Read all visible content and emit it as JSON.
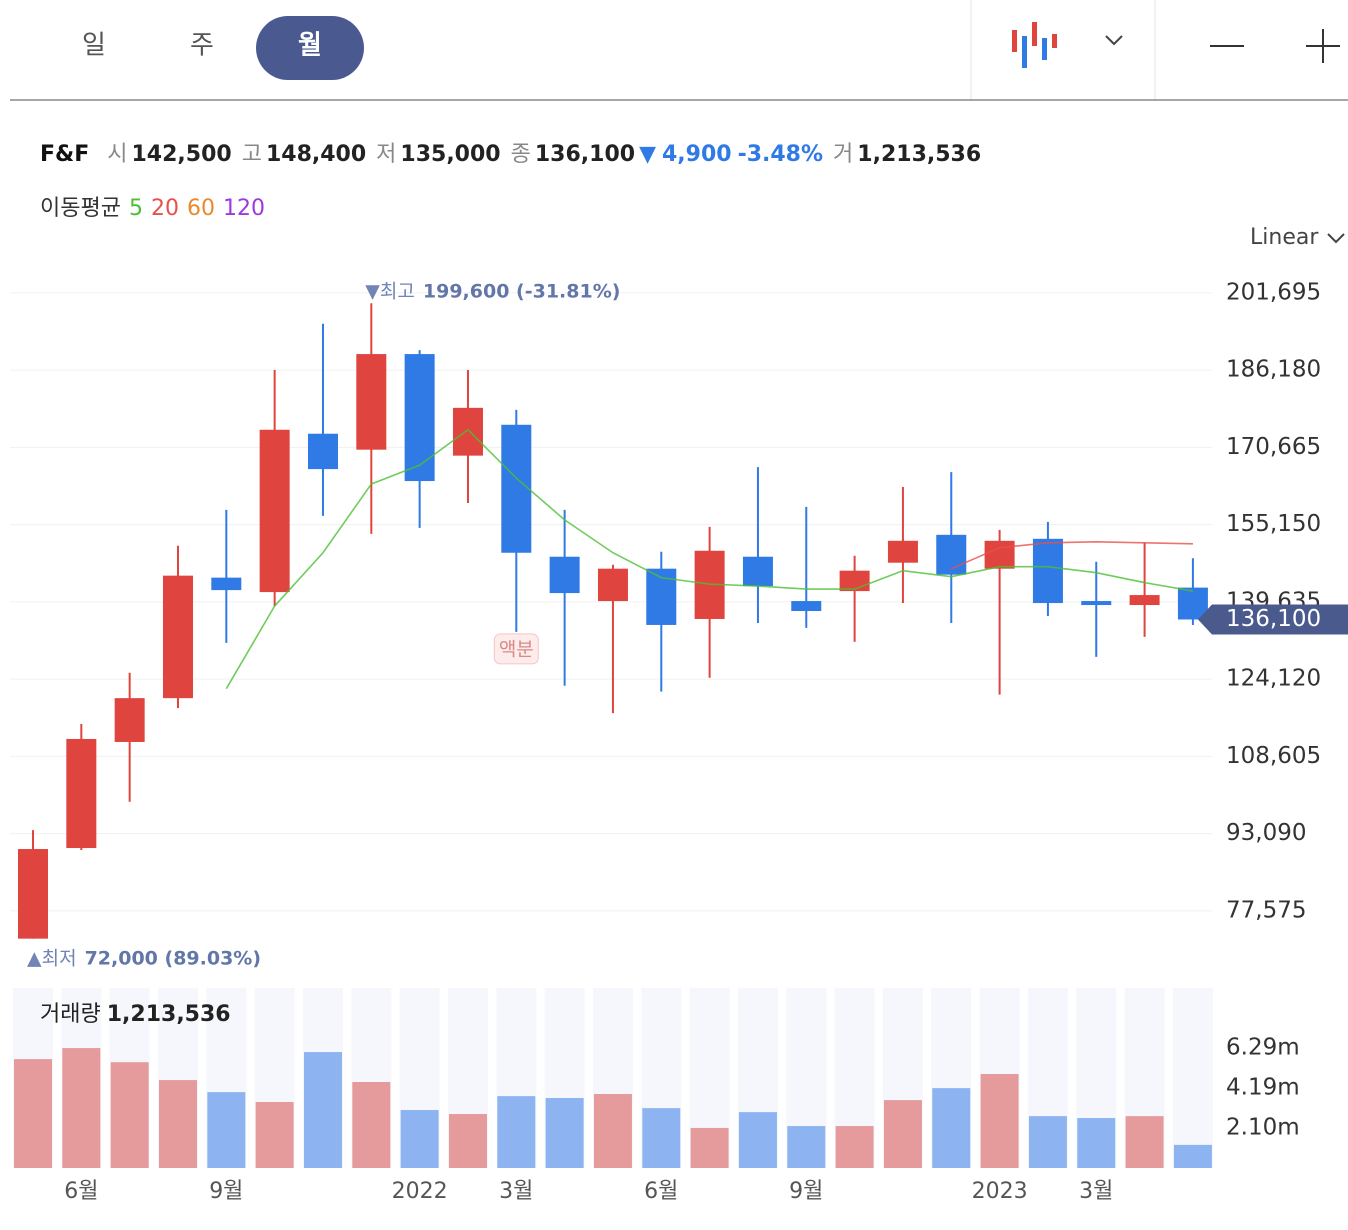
{
  "tabs": {
    "items": [
      "일",
      "주",
      "월"
    ],
    "selected": 2
  },
  "stock": {
    "name": "F&F",
    "open_label": "시",
    "open": "142,500",
    "high_label": "고",
    "high": "148,400",
    "low_label": "저",
    "low": "135,000",
    "close_label": "종",
    "close": "136,100",
    "change_arrow": "▼",
    "change": "4,900",
    "change_pct": "-3.48%",
    "volume_label": "거",
    "volume": "1,213,536"
  },
  "scale_mode": "Linear",
  "chart_data": [
    {
      "type": "candlestick",
      "categories": [
        null,
        "6월",
        null,
        null,
        "9월",
        null,
        null,
        null,
        "2022",
        null,
        "3월",
        null,
        null,
        "6월",
        null,
        null,
        "9월",
        null,
        null,
        null,
        "2023",
        null,
        "3월",
        null,
        null
      ],
      "events": [
        null,
        null,
        null,
        null,
        null,
        null,
        null,
        null,
        null,
        null,
        "액분",
        null,
        null,
        null,
        null,
        null,
        null,
        null,
        null,
        null,
        null,
        null,
        null,
        null,
        null
      ],
      "series": [
        {
          "name": "F&F",
          "open": [
            72000,
            90200,
            111500,
            120300,
            144500,
            141600,
            173400,
            170200,
            189400,
            169000,
            175200,
            148700,
            139800,
            146300,
            136200,
            148700,
            139800,
            141800,
            147500,
            153100,
            146300,
            152300,
            139800,
            139000,
            142500
          ],
          "high": [
            93800,
            115100,
            125400,
            150900,
            158100,
            186200,
            195500,
            199600,
            190200,
            186200,
            178200,
            158100,
            147100,
            149700,
            154700,
            166700,
            158700,
            148900,
            162700,
            165700,
            154100,
            155700,
            147700,
            151500,
            148400
          ],
          "low": [
            72000,
            89800,
            99500,
            118300,
            131400,
            138800,
            156900,
            153300,
            154500,
            159500,
            133600,
            122800,
            117300,
            121600,
            124400,
            135400,
            134400,
            131600,
            139400,
            135400,
            121000,
            136800,
            128600,
            132600,
            135000
          ],
          "close": [
            90000,
            112100,
            120300,
            144900,
            142000,
            174200,
            166300,
            189400,
            163900,
            178600,
            149500,
            141400,
            146300,
            135000,
            149900,
            142800,
            137800,
            145900,
            151900,
            145100,
            151900,
            139400,
            139000,
            141000,
            136100
          ]
        }
      ],
      "up_color": "#e0443e",
      "down_color": "#2f7ae5",
      "ma_title": "이동평균",
      "ma": [
        {
          "name": "5",
          "color": "#4cbf35",
          "values": [
            null,
            null,
            null,
            null,
            122200,
            138800,
            149500,
            163300,
            167100,
            174200,
            164500,
            156100,
            149500,
            144500,
            143200,
            142800,
            142200,
            142200,
            145900,
            144700,
            146700,
            146700,
            145500,
            143500,
            141800
          ]
        },
        {
          "name": "20",
          "color": "#e8504a",
          "values": [
            null,
            null,
            null,
            null,
            null,
            null,
            null,
            null,
            null,
            null,
            null,
            null,
            null,
            null,
            null,
            null,
            null,
            null,
            null,
            146300,
            150500,
            151500,
            151700,
            151500,
            151300
          ]
        },
        {
          "name": "60",
          "color": "#e88a2e",
          "values": [
            null,
            null,
            null,
            null,
            null,
            null,
            null,
            null,
            null,
            null,
            null,
            null,
            null,
            null,
            null,
            null,
            null,
            null,
            null,
            null,
            null,
            null,
            null,
            null,
            null
          ]
        },
        {
          "name": "120",
          "color": "#9a3ae0",
          "values": [
            null,
            null,
            null,
            null,
            null,
            null,
            null,
            null,
            null,
            null,
            null,
            null,
            null,
            null,
            null,
            null,
            null,
            null,
            null,
            null,
            null,
            null,
            null,
            null,
            null
          ]
        }
      ],
      "ylim": [
        64700,
        210300
      ],
      "yticks": [
        {
          "value": 77575,
          "label": "77,575"
        },
        {
          "value": 93090,
          "label": "93,090"
        },
        {
          "value": 108605,
          "label": "108,605"
        },
        {
          "value": 124120,
          "label": "124,120"
        },
        {
          "value": 139635,
          "label": "139,635"
        },
        {
          "value": 155150,
          "label": "155,150"
        },
        {
          "value": 170665,
          "label": "170,665"
        },
        {
          "value": 186180,
          "label": "186,180"
        },
        {
          "value": 201695,
          "label": "201,695"
        }
      ],
      "grid": true,
      "annotations": [
        {
          "kind": "high",
          "marker": "▼최고",
          "value": 199600,
          "text": "199,600 (-31.81%)"
        },
        {
          "kind": "low",
          "marker": "▲최저",
          "value": 72000,
          "text": "72,000 (89.03%)"
        }
      ],
      "last_price": {
        "value": 136100,
        "label": "136,100"
      }
    },
    {
      "type": "bar",
      "title": "거래량",
      "current": "1,213,536",
      "values": [
        5710000,
        6290000,
        5550000,
        4610000,
        3980000,
        3460000,
        6080000,
        4510000,
        3040000,
        2830000,
        3770000,
        3670000,
        3880000,
        3140000,
        2100000,
        2930000,
        2200000,
        2200000,
        3560000,
        4190000,
        4930000,
        2720000,
        2620000,
        2720000,
        1213536
      ],
      "up_color": "#e59a9c",
      "down_color": "#8db4f0",
      "ylim": [
        0,
        9440000
      ],
      "yticks": [
        {
          "value": 2100000,
          "label": "2.10m"
        },
        {
          "value": 4190000,
          "label": "4.19m"
        },
        {
          "value": 6290000,
          "label": "6.29m"
        }
      ]
    }
  ]
}
